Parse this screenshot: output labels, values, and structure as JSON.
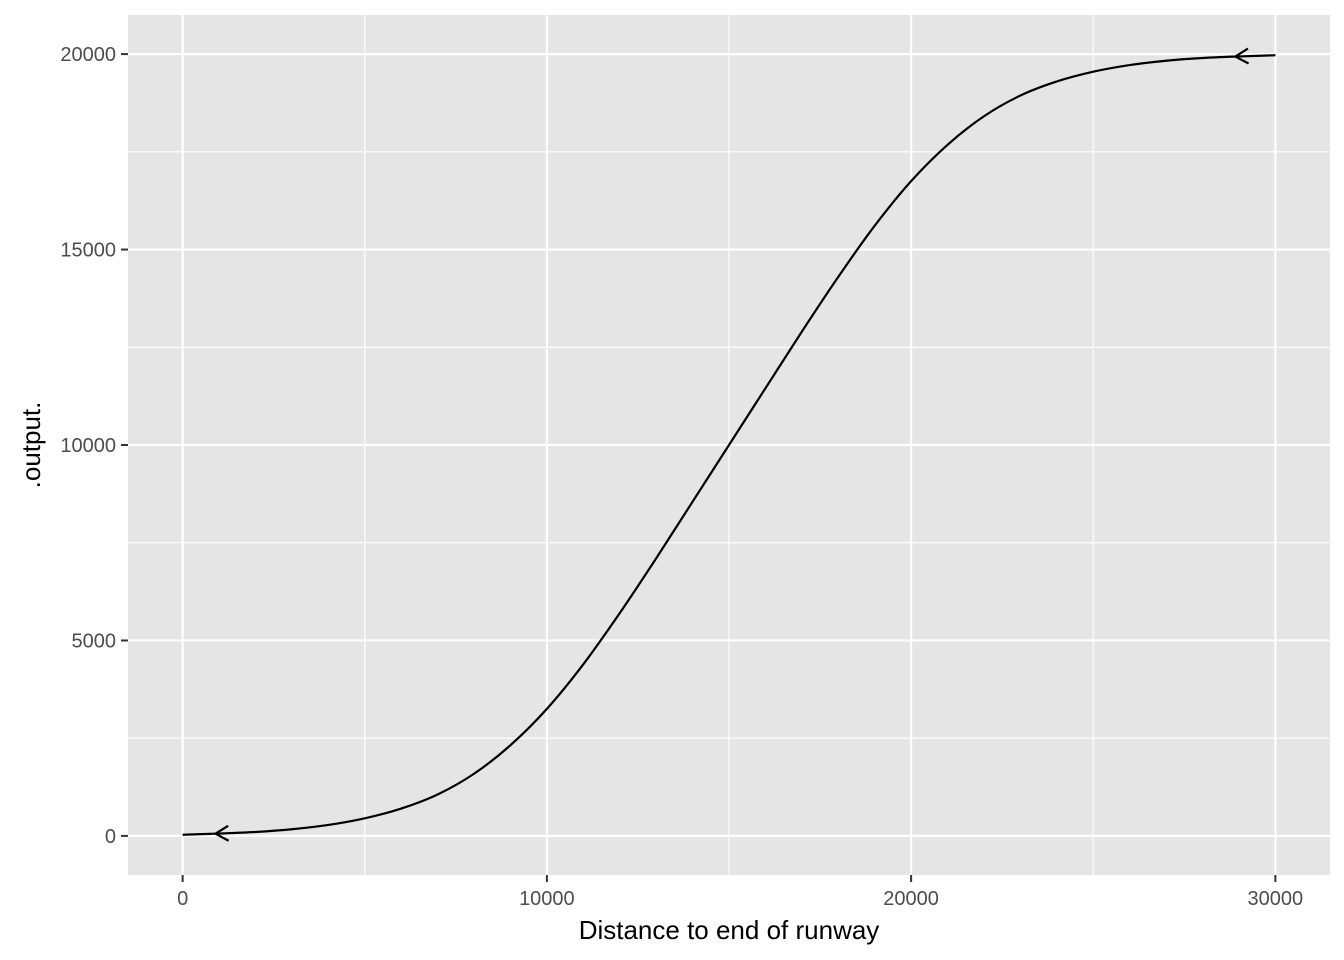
{
  "chart_data": {
    "type": "line",
    "title": "",
    "xlabel": "Distance to end of runway",
    "ylabel": ".output.",
    "xlim": [
      -1500,
      31500
    ],
    "ylim": [
      -1000,
      21000
    ],
    "x_ticks": [
      0,
      10000,
      20000,
      30000
    ],
    "x_tick_labels": [
      "0",
      "10000",
      "20000",
      "30000"
    ],
    "x_minor_ticks": [
      5000,
      15000,
      25000
    ],
    "y_ticks": [
      0,
      5000,
      10000,
      15000,
      20000
    ],
    "y_tick_labels": [
      "0",
      "5000",
      "10000",
      "15000",
      "20000"
    ],
    "y_minor_ticks": [
      2500,
      7500,
      12500,
      17500
    ],
    "grid": true,
    "legend": "none",
    "panel_color": "#e5e5e5",
    "grid_color": "#ffffff",
    "line_color": "#000000",
    "arrows": "both-ends",
    "series": [
      {
        "x": [
          0,
          1000,
          2000,
          3000,
          4000,
          5000,
          6000,
          7000,
          8000,
          9000,
          10000,
          11000,
          12000,
          13000,
          14000,
          15000,
          16000,
          17000,
          18000,
          19000,
          20000,
          21000,
          22000,
          23000,
          24000,
          25000,
          26000,
          27000,
          28000,
          29000,
          30000
        ],
        "y": [
          30,
          60,
          100,
          170,
          280,
          450,
          700,
          1060,
          1590,
          2320,
          3250,
          4390,
          5700,
          7100,
          8550,
          10000,
          11450,
          12900,
          14300,
          15610,
          16750,
          17680,
          18410,
          18940,
          19300,
          19550,
          19720,
          19830,
          19900,
          19940,
          19970
        ]
      }
    ]
  }
}
